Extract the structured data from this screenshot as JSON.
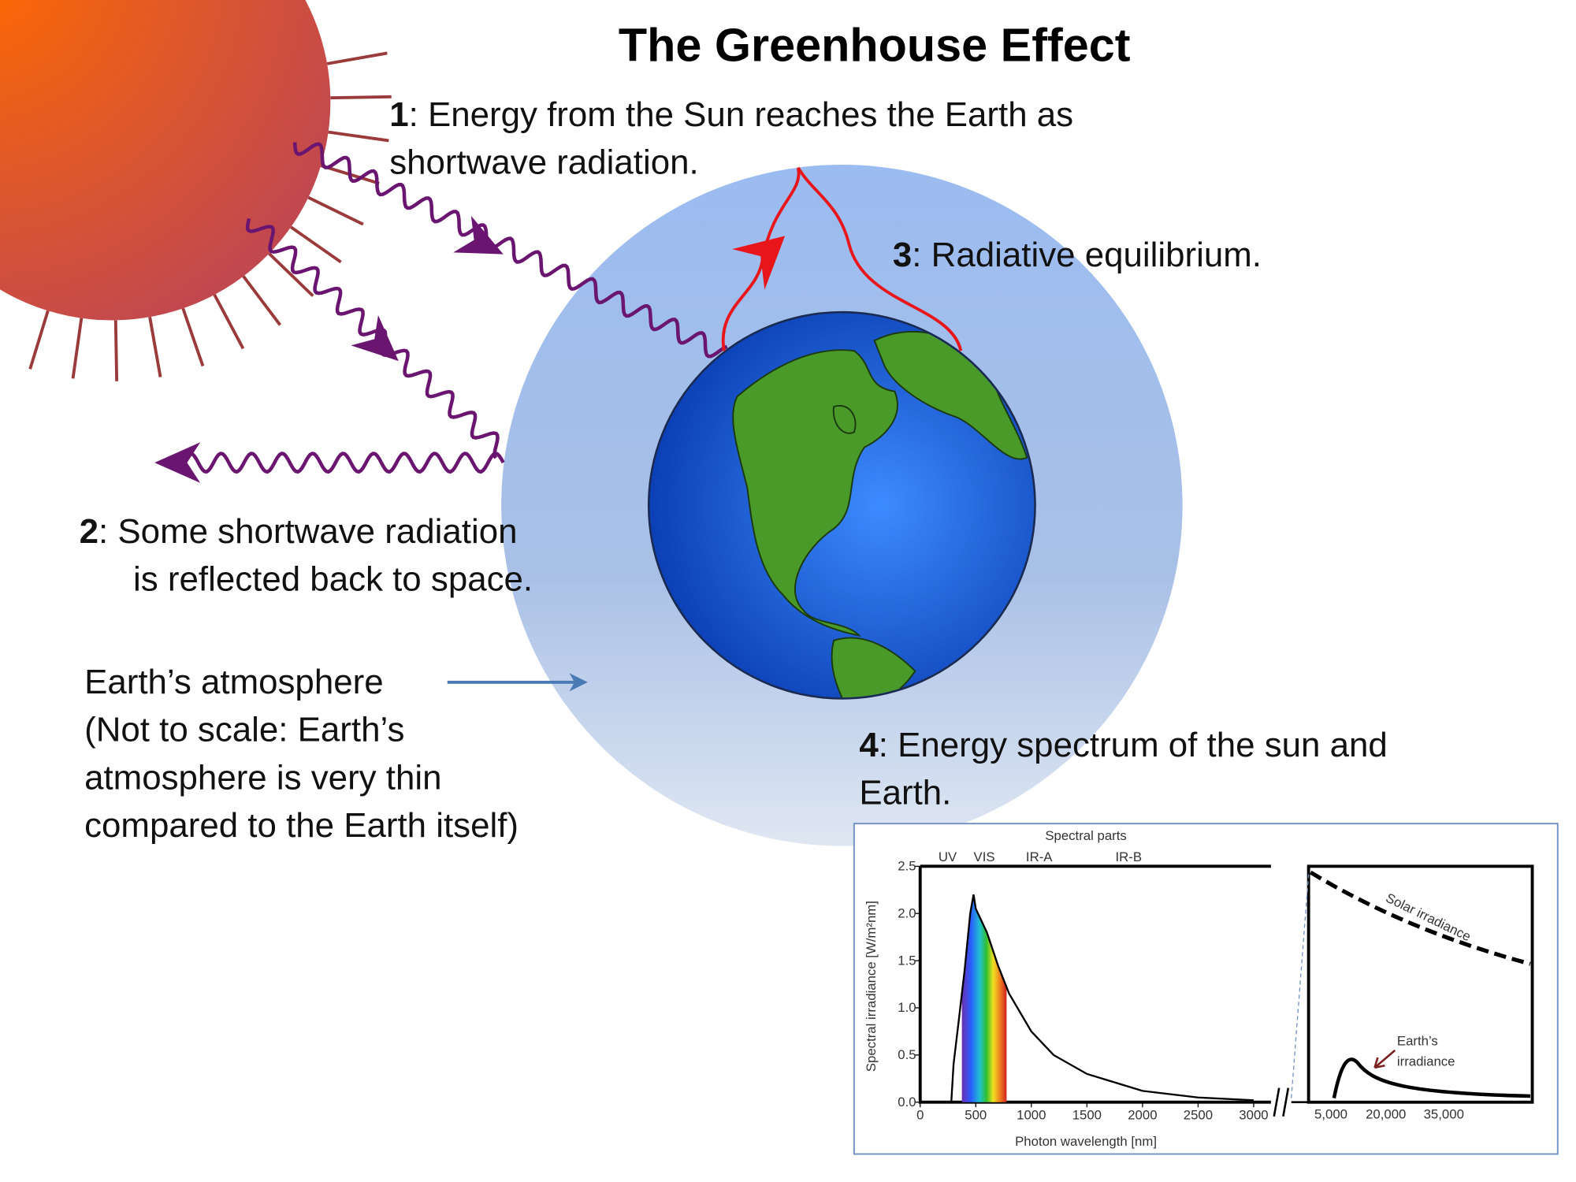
{
  "title": "The Greenhouse Effect",
  "steps": [
    {
      "number": "1",
      "lines": [
        ": Energy from the Sun reaches the Earth as",
        "shortwave radiation."
      ]
    },
    {
      "number": "2",
      "lines": [
        ": Some shortwave radiation",
        "is reflected back to space."
      ]
    },
    {
      "number": "3",
      "lines": [
        ": Radiative equilibrium."
      ]
    },
    {
      "number": "4",
      "lines": [
        ": Energy spectrum of the sun and",
        "Earth."
      ]
    }
  ],
  "atmosphere_note": [
    "Earth’s atmosphere",
    "(Not to scale: Earth’s",
    "atmosphere is very thin",
    "compared to the Earth itself)"
  ],
  "inset": {
    "type": "line",
    "title": "Spectral parts",
    "bands": [
      "UV",
      "VIS",
      "IR-A",
      "IR-B"
    ],
    "xlabel": "Photon wavelength  [nm]",
    "ylabel": "Spectral irradiance  [W/m²nm]",
    "xlim": [
      0,
      3000
    ],
    "ylim": [
      0,
      2.5
    ],
    "xticks": [
      0,
      500,
      1000,
      1500,
      2000,
      2500,
      3000
    ],
    "yticks": [
      {
        "value": 0,
        "label": "0.0"
      },
      {
        "value": 0.5,
        "label": "0.5"
      },
      {
        "value": 1,
        "label": "1.0"
      },
      {
        "value": 1.5,
        "label": "1.5"
      },
      {
        "value": 2,
        "label": "2.0"
      },
      {
        "value": 2.5,
        "label": "2.5"
      }
    ],
    "x2ticks": [
      {
        "value": 5000,
        "label": "5,000"
      },
      {
        "value": 20000,
        "label": "20,000"
      },
      {
        "value": 35000,
        "label": "35,000"
      }
    ],
    "x": [
      280,
      300,
      350,
      400,
      450,
      480,
      500,
      600,
      700,
      800,
      1000,
      1200,
      1500,
      2000,
      2500,
      3000
    ],
    "values": [
      0,
      0.4,
      0.9,
      1.4,
      2.0,
      2.2,
      2.05,
      1.8,
      1.45,
      1.15,
      0.75,
      0.5,
      0.3,
      0.12,
      0.05,
      0.02
    ],
    "annotations": [
      "Solar irradiance",
      "Earth’s",
      "irradiance"
    ]
  }
}
